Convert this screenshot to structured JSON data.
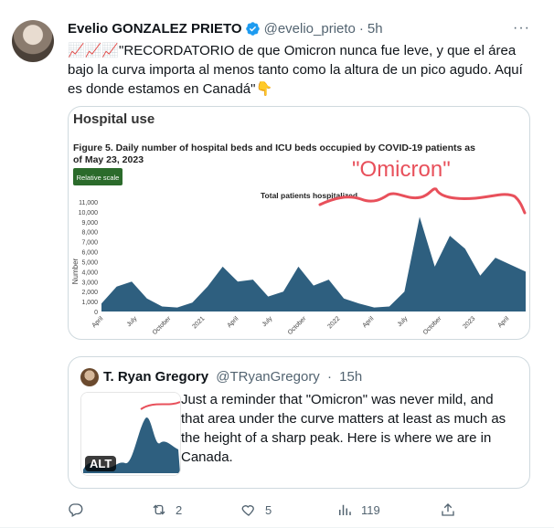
{
  "author": {
    "name": "Evelio GONZALEZ PRIETO",
    "handle": "@evelio_prieto",
    "dot": "·",
    "time": "5h",
    "more": "···"
  },
  "tweet_text": "📈📈📈\"RECORDATORIO de que Omicron nunca fue leve, y que el área bajo la curva importa al menos tanto como la altura de un pico agudo. Aquí es donde estamos en Canadá\"👇",
  "media": {
    "heading": "Hospital use",
    "figure_title_1": "Figure 5. Daily number of hospital beds and ICU beds occupied by COVID-19 patients as",
    "figure_title_2": "of May 23, 2023",
    "button": "Relative scale",
    "annotation": "\"Omicron\"",
    "series_label": "Total patients hospitalized",
    "ylabel": "Number",
    "accent_color": "#2e5f7f",
    "annotation_color": "#e8505b",
    "button_color": "#2b6b2b"
  },
  "chart_data": {
    "type": "area",
    "title": "Figure 5. Daily number of hospital beds and ICU beds occupied by COVID-19 patients as of May 23, 2023",
    "ylabel": "Number",
    "ylim": [
      0,
      11000
    ],
    "yticks": [
      "0",
      "1,000",
      "2,000",
      "3,000",
      "4,000",
      "5,000",
      "6,000",
      "7,000",
      "8,000",
      "9,000",
      "10,000",
      "11,000"
    ],
    "xticks": [
      "April",
      "July",
      "October",
      "2021",
      "April",
      "July",
      "October",
      "2022",
      "April",
      "July",
      "October",
      "2023",
      "April"
    ],
    "series": [
      {
        "name": "Total patients hospitalized",
        "x": [
          0,
          0.5,
          1,
          1.5,
          2,
          2.5,
          3,
          3.5,
          4,
          4.5,
          5,
          5.5,
          6,
          6.5,
          7,
          7.5,
          8,
          8.5,
          9,
          9.5,
          10,
          10.5,
          11,
          11.5,
          12,
          12.5,
          13,
          13.5,
          14
        ],
        "values": [
          800,
          2500,
          3000,
          1300,
          500,
          400,
          900,
          2500,
          4500,
          3000,
          3200,
          1500,
          2000,
          4500,
          2600,
          3200,
          1300,
          800,
          400,
          500,
          2000,
          9500,
          4500,
          7600,
          6300,
          3600,
          5400,
          4700,
          4000
        ]
      }
    ]
  },
  "quote": {
    "name": "T. Ryan Gregory",
    "handle": "@TRyanGregory",
    "dot": "·",
    "time": "15h",
    "alt": "ALT",
    "text": "Just a reminder that \"Omicron\" was never mild, and that area under the curve matters at least as much as the height of a sharp peak. Here is where we are in Canada."
  },
  "actions": {
    "reply_count": "",
    "retweet_count": "2",
    "like_count": "5",
    "views_count": "119"
  }
}
